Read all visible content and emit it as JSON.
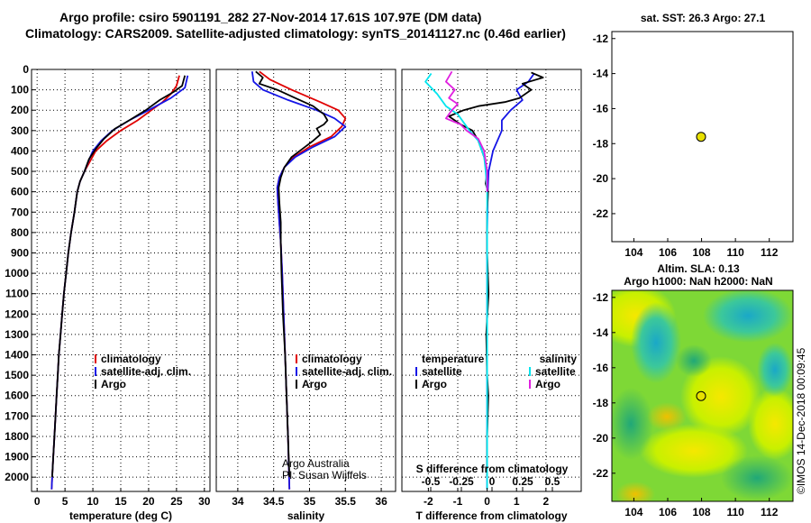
{
  "header": {
    "title": "Argo profile: csiro 5901191_282 27-Nov-2014 17.61S 107.97E (DM data)",
    "subtitle": "Climatology: CARS2009. Satellite-adjusted climatology: synTS_20141127.nc (0.46d earlier)"
  },
  "colors": {
    "climatology": "#e00000",
    "satellite": "#1414e6",
    "argo": "#000000",
    "sat_t": "#1414e6",
    "sat_s": "#00e5ee",
    "argo_s": "#e020e0"
  },
  "chart_data": [
    {
      "type": "line",
      "id": "temperature",
      "xlabel": "temperature (deg C)",
      "xlim": [
        -1,
        31
      ],
      "xticks": [
        0,
        5,
        10,
        15,
        20,
        25,
        30
      ],
      "ylim": [
        0,
        2070
      ],
      "yticks": [
        0,
        100,
        200,
        300,
        400,
        500,
        600,
        700,
        800,
        900,
        1000,
        1100,
        1200,
        1300,
        1400,
        1500,
        1600,
        1700,
        1800,
        1900,
        2000
      ],
      "grid": true,
      "legend_entries": [
        "climatology",
        "satellite-adj. clim.",
        "Argo"
      ],
      "series": [
        {
          "name": "climatology",
          "points": [
            [
              25.5,
              30
            ],
            [
              25,
              80
            ],
            [
              24,
              120
            ],
            [
              22.5,
              160
            ],
            [
              20.5,
              200
            ],
            [
              18,
              250
            ],
            [
              15,
              300
            ],
            [
              12.5,
              350
            ],
            [
              10.5,
              400
            ],
            [
              9.5,
              450
            ],
            [
              8.5,
              500
            ],
            [
              7.7,
              550
            ],
            [
              7.2,
              600
            ],
            [
              6.7,
              700
            ],
            [
              6.1,
              800
            ],
            [
              5.6,
              900
            ],
            [
              5.2,
              1000
            ],
            [
              4.8,
              1100
            ],
            [
              4.5,
              1200
            ],
            [
              4.2,
              1300
            ],
            [
              3.9,
              1400
            ],
            [
              3.7,
              1500
            ],
            [
              3.5,
              1600
            ],
            [
              3.3,
              1700
            ],
            [
              3.1,
              1800
            ],
            [
              2.9,
              1900
            ],
            [
              2.7,
              2000
            ],
            [
              2.6,
              2060
            ]
          ]
        },
        {
          "name": "satellite-adj. clim.",
          "points": [
            [
              27,
              30
            ],
            [
              26.5,
              90
            ],
            [
              24,
              140
            ],
            [
              20,
              200
            ],
            [
              16.5,
              250
            ],
            [
              13.5,
              300
            ],
            [
              11.5,
              350
            ],
            [
              10,
              400
            ],
            [
              9.2,
              450
            ],
            [
              8.5,
              500
            ],
            [
              7.7,
              550
            ],
            [
              7.2,
              600
            ],
            [
              6.7,
              700
            ],
            [
              6.1,
              800
            ],
            [
              5.6,
              900
            ],
            [
              5.2,
              1000
            ],
            [
              4.8,
              1100
            ],
            [
              4.5,
              1200
            ],
            [
              4.2,
              1300
            ],
            [
              3.9,
              1400
            ],
            [
              3.7,
              1500
            ],
            [
              3.5,
              1600
            ],
            [
              3.3,
              1700
            ],
            [
              3.1,
              1800
            ],
            [
              2.9,
              1900
            ],
            [
              2.7,
              2000
            ],
            [
              2.6,
              2060
            ]
          ]
        },
        {
          "name": "Argo",
          "points": [
            [
              26.5,
              30
            ],
            [
              26,
              80
            ],
            [
              24.5,
              110
            ],
            [
              22,
              150
            ],
            [
              19.5,
              200
            ],
            [
              16.5,
              250
            ],
            [
              14,
              290
            ],
            [
              12,
              340
            ],
            [
              10.5,
              390
            ],
            [
              9.3,
              440
            ],
            [
              8.5,
              500
            ],
            [
              7.7,
              550
            ],
            [
              7.2,
              600
            ],
            [
              6.7,
              700
            ],
            [
              6.1,
              800
            ],
            [
              5.6,
              900
            ],
            [
              5.2,
              1000
            ],
            [
              4.8,
              1100
            ],
            [
              4.5,
              1200
            ],
            [
              4.2,
              1300
            ],
            [
              3.9,
              1400
            ],
            [
              3.7,
              1500
            ],
            [
              3.5,
              1600
            ],
            [
              3.3,
              1700
            ],
            [
              3.1,
              1800
            ],
            [
              2.9,
              1900
            ],
            [
              2.7,
              2000
            ]
          ]
        }
      ]
    },
    {
      "type": "line",
      "id": "salinity",
      "xlabel": "salinity",
      "xlim": [
        33.7,
        36.2
      ],
      "xticks": [
        34,
        34.5,
        35,
        35.5,
        36
      ],
      "ylim": [
        0,
        2070
      ],
      "grid": true,
      "legend_entries": [
        "climatology",
        "satellite-adj. clim.",
        "Argo"
      ],
      "series": [
        {
          "name": "climatology",
          "points": [
            [
              34.3,
              10
            ],
            [
              34.45,
              50
            ],
            [
              34.75,
              100
            ],
            [
              35.15,
              160
            ],
            [
              35.4,
              200
            ],
            [
              35.5,
              240
            ],
            [
              35.45,
              280
            ],
            [
              35.3,
              330
            ],
            [
              35.0,
              380
            ],
            [
              34.78,
              430
            ],
            [
              34.65,
              480
            ],
            [
              34.58,
              530
            ],
            [
              34.55,
              580
            ],
            [
              34.56,
              650
            ],
            [
              34.58,
              750
            ],
            [
              34.6,
              850
            ],
            [
              34.62,
              1000
            ],
            [
              34.64,
              1200
            ],
            [
              34.66,
              1400
            ],
            [
              34.68,
              1600
            ],
            [
              34.7,
              1800
            ],
            [
              34.72,
              2060
            ]
          ]
        },
        {
          "name": "satellite-adj. clim.",
          "points": [
            [
              34.2,
              10
            ],
            [
              34.22,
              60
            ],
            [
              34.35,
              100
            ],
            [
              34.7,
              150
            ],
            [
              35.1,
              200
            ],
            [
              35.35,
              240
            ],
            [
              35.5,
              280
            ],
            [
              35.35,
              330
            ],
            [
              35.05,
              380
            ],
            [
              34.8,
              430
            ],
            [
              34.65,
              480
            ],
            [
              34.58,
              530
            ],
            [
              34.55,
              580
            ],
            [
              34.56,
              650
            ],
            [
              34.58,
              750
            ],
            [
              34.6,
              850
            ],
            [
              34.62,
              1000
            ],
            [
              34.64,
              1200
            ],
            [
              34.66,
              1400
            ],
            [
              34.68,
              1600
            ],
            [
              34.7,
              1800
            ],
            [
              34.72,
              2060
            ]
          ]
        },
        {
          "name": "Argo",
          "points": [
            [
              34.25,
              10
            ],
            [
              34.35,
              40
            ],
            [
              34.3,
              70
            ],
            [
              34.55,
              100
            ],
            [
              34.8,
              140
            ],
            [
              35.05,
              180
            ],
            [
              35.2,
              220
            ],
            [
              35.25,
              250
            ],
            [
              35.2,
              270
            ],
            [
              35.1,
              290
            ],
            [
              35.15,
              320
            ],
            [
              35.05,
              350
            ],
            [
              34.9,
              390
            ],
            [
              34.75,
              430
            ],
            [
              34.65,
              480
            ],
            [
              34.6,
              530
            ],
            [
              34.57,
              580
            ],
            [
              34.58,
              650
            ],
            [
              34.6,
              750
            ],
            [
              34.6,
              850
            ],
            [
              34.61,
              1000
            ],
            [
              34.63,
              1200
            ],
            [
              34.66,
              1400
            ],
            [
              34.68,
              1600
            ],
            [
              34.7,
              1800
            ],
            [
              34.72,
              2000
            ]
          ]
        }
      ]
    },
    {
      "type": "line",
      "id": "differences",
      "xlabel": "T difference from climatology",
      "xlabel2": "S difference from climatology",
      "xlim": [
        -2.9,
        3.2
      ],
      "xticks": [
        -2,
        -1,
        0,
        1,
        2
      ],
      "xticks2_labels": [
        "-0.5",
        "-0.25",
        "0",
        "0.25",
        "0.5"
      ],
      "ylim": [
        0,
        2070
      ],
      "grid": true,
      "legend_left_title": "temperature",
      "legend_right_title": "salinity",
      "legend_left_entries": [
        "satellite",
        "Argo"
      ],
      "legend_right_entries": [
        "satellite",
        "Argo"
      ],
      "series": [
        {
          "name": "T satellite",
          "points": [
            [
              1.6,
              20
            ],
            [
              1.4,
              60
            ],
            [
              1.0,
              100
            ],
            [
              1.2,
              150
            ],
            [
              0.8,
              200
            ],
            [
              0.5,
              250
            ],
            [
              0.5,
              300
            ],
            [
              0.2,
              400
            ],
            [
              0.05,
              500
            ],
            [
              0.02,
              600
            ],
            [
              0,
              800
            ],
            [
              0,
              1100
            ],
            [
              0,
              1500
            ],
            [
              0,
              1800
            ],
            [
              0,
              2060
            ]
          ]
        },
        {
          "name": "T Argo",
          "points": [
            [
              1.5,
              15
            ],
            [
              1.9,
              40
            ],
            [
              1.2,
              70
            ],
            [
              1.5,
              100
            ],
            [
              1.1,
              140
            ],
            [
              0.6,
              160
            ],
            [
              -0.3,
              180
            ],
            [
              -0.8,
              200
            ],
            [
              -1.3,
              230
            ],
            [
              -0.9,
              270
            ],
            [
              -0.5,
              300
            ],
            [
              -0.3,
              350
            ],
            [
              -0.1,
              430
            ],
            [
              0,
              500
            ],
            [
              -0.05,
              560
            ],
            [
              0.03,
              600
            ],
            [
              0,
              700
            ],
            [
              0,
              900
            ],
            [
              0.05,
              1100
            ],
            [
              -0.03,
              1300
            ],
            [
              0,
              1500
            ],
            [
              0.04,
              1600
            ],
            [
              0,
              1800
            ],
            [
              0,
              2000
            ]
          ]
        },
        {
          "name": "S satellite",
          "points": [
            [
              -1.9,
              20
            ],
            [
              -2.1,
              60
            ],
            [
              -1.7,
              120
            ],
            [
              -1.4,
              180
            ],
            [
              -1.0,
              220
            ],
            [
              -0.8,
              260
            ],
            [
              -0.6,
              300
            ],
            [
              -0.3,
              350
            ],
            [
              -0.1,
              430
            ],
            [
              -0.05,
              500
            ],
            [
              0,
              600
            ],
            [
              0,
              900
            ],
            [
              0,
              1200
            ],
            [
              0,
              1600
            ],
            [
              0,
              2060
            ]
          ]
        },
        {
          "name": "S Argo",
          "points": [
            [
              -1.2,
              10
            ],
            [
              -1.4,
              60
            ],
            [
              -1.1,
              100
            ],
            [
              -1.3,
              140
            ],
            [
              -1.0,
              170
            ],
            [
              -1.2,
              200
            ],
            [
              -1.4,
              240
            ],
            [
              -0.9,
              270
            ],
            [
              -0.7,
              300
            ],
            [
              -0.3,
              340
            ],
            [
              -0.1,
              400
            ],
            [
              0,
              500
            ],
            [
              0,
              600
            ]
          ]
        }
      ]
    },
    {
      "type": "heatmap",
      "id": "sst_map",
      "title": "sat. SST: 26.3 Argo: 27.1",
      "xlim": [
        102.7,
        113.4
      ],
      "ylim": [
        -23.6,
        -11.6
      ],
      "xticks": [
        104,
        106,
        108,
        110,
        112
      ],
      "yticks": [
        -12,
        -14,
        -16,
        -18,
        -20,
        -22
      ],
      "marker": {
        "x": 107.97,
        "y": -17.61
      }
    },
    {
      "type": "heatmap",
      "id": "sla_map",
      "title": "Altim. SLA: 0.13",
      "subtitle": "Argo h1000: NaN h2000: NaN",
      "xlim": [
        102.7,
        113.4
      ],
      "ylim": [
        -23.6,
        -11.6
      ],
      "xticks": [
        104,
        106,
        108,
        110,
        112
      ],
      "yticks": [
        -12,
        -14,
        -16,
        -18,
        -20,
        -22
      ],
      "marker": {
        "x": 107.97,
        "y": -17.61
      }
    }
  ],
  "credits": {
    "line1": "Argo Australia",
    "line2": "PI: Susan Wijffels"
  },
  "stamp": "©IMOS 14-Dec-2018 00:09:45"
}
